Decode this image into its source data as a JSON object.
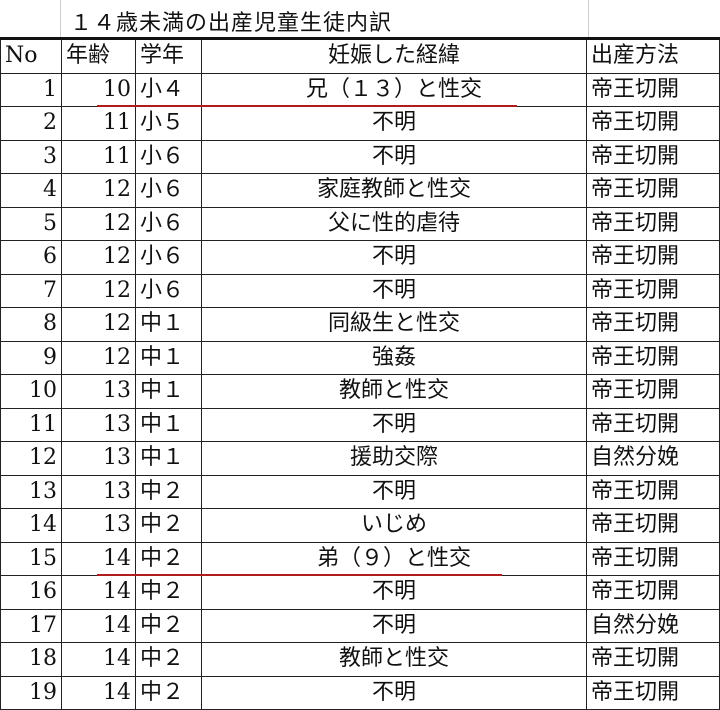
{
  "title": "１４歳未満の出産児童生徒内訳",
  "headers": {
    "no": "No",
    "age": "年齢",
    "grade": "学年",
    "reason": "妊娠した経緯",
    "method": "出産方法"
  },
  "highlight_color": "#b01c1c",
  "highlighted_rows": [
    1,
    15
  ],
  "rows": [
    {
      "no": "1",
      "age": "10",
      "grade": "小４",
      "reason": "兄（１３）と性交",
      "method": "帝王切開"
    },
    {
      "no": "2",
      "age": "11",
      "grade": "小５",
      "reason": "不明",
      "method": "帝王切開"
    },
    {
      "no": "3",
      "age": "11",
      "grade": "小６",
      "reason": "不明",
      "method": "帝王切開"
    },
    {
      "no": "4",
      "age": "12",
      "grade": "小６",
      "reason": "家庭教師と性交",
      "method": "帝王切開"
    },
    {
      "no": "5",
      "age": "12",
      "grade": "小６",
      "reason": "父に性的虐待",
      "method": "帝王切開"
    },
    {
      "no": "6",
      "age": "12",
      "grade": "小６",
      "reason": "不明",
      "method": "帝王切開"
    },
    {
      "no": "7",
      "age": "12",
      "grade": "小６",
      "reason": "不明",
      "method": "帝王切開"
    },
    {
      "no": "8",
      "age": "12",
      "grade": "中１",
      "reason": "同級生と性交",
      "method": "帝王切開"
    },
    {
      "no": "9",
      "age": "12",
      "grade": "中１",
      "reason": "強姦",
      "method": "帝王切開"
    },
    {
      "no": "10",
      "age": "13",
      "grade": "中１",
      "reason": "教師と性交",
      "method": "帝王切開"
    },
    {
      "no": "11",
      "age": "13",
      "grade": "中１",
      "reason": "不明",
      "method": "帝王切開"
    },
    {
      "no": "12",
      "age": "13",
      "grade": "中１",
      "reason": "援助交際",
      "method": "自然分娩"
    },
    {
      "no": "13",
      "age": "13",
      "grade": "中２",
      "reason": "不明",
      "method": "帝王切開"
    },
    {
      "no": "14",
      "age": "13",
      "grade": "中２",
      "reason": "いじめ",
      "method": "帝王切開"
    },
    {
      "no": "15",
      "age": "14",
      "grade": "中２",
      "reason": "弟（９）と性交",
      "method": "帝王切開"
    },
    {
      "no": "16",
      "age": "14",
      "grade": "中２",
      "reason": "不明",
      "method": "帝王切開"
    },
    {
      "no": "17",
      "age": "14",
      "grade": "中２",
      "reason": "不明",
      "method": "自然分娩"
    },
    {
      "no": "18",
      "age": "14",
      "grade": "中２",
      "reason": "教師と性交",
      "method": "帝王切開"
    },
    {
      "no": "19",
      "age": "14",
      "grade": "中２",
      "reason": "不明",
      "method": "帝王切開"
    }
  ]
}
